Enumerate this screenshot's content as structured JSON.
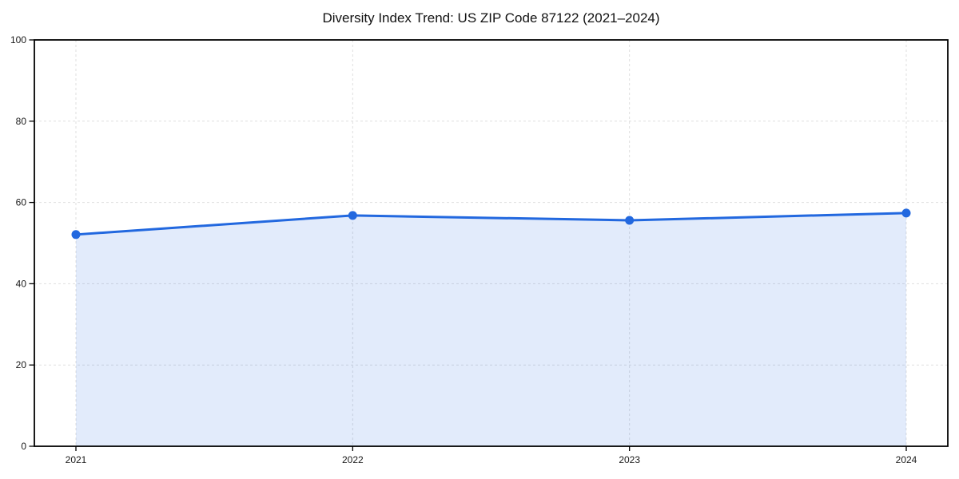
{
  "chart_data": {
    "type": "area",
    "title": "Diversity Index Trend: US ZIP Code 87122 (2021–2024)",
    "categories": [
      "2021",
      "2022",
      "2023",
      "2024"
    ],
    "x": [
      2021,
      2022,
      2023,
      2024
    ],
    "values": [
      52.1,
      56.8,
      55.6,
      57.4
    ],
    "series_name": "Diversity Index",
    "xlabel": "",
    "ylabel": "",
    "ylim": [
      0,
      100
    ],
    "yticks": [
      0,
      20,
      40,
      60,
      80,
      100
    ],
    "grid": true,
    "grid_style": "dashed",
    "legend": "none",
    "marker": "circle",
    "colors": {
      "line": "#2268df",
      "marker": "#2268df",
      "fill": "#2268df",
      "fill_opacity": 0.13,
      "grid": "#dfdfdf",
      "spine": "#000000",
      "tick_text": "#1a1a1a",
      "title_text": "#111111",
      "background": "#ffffff"
    }
  }
}
